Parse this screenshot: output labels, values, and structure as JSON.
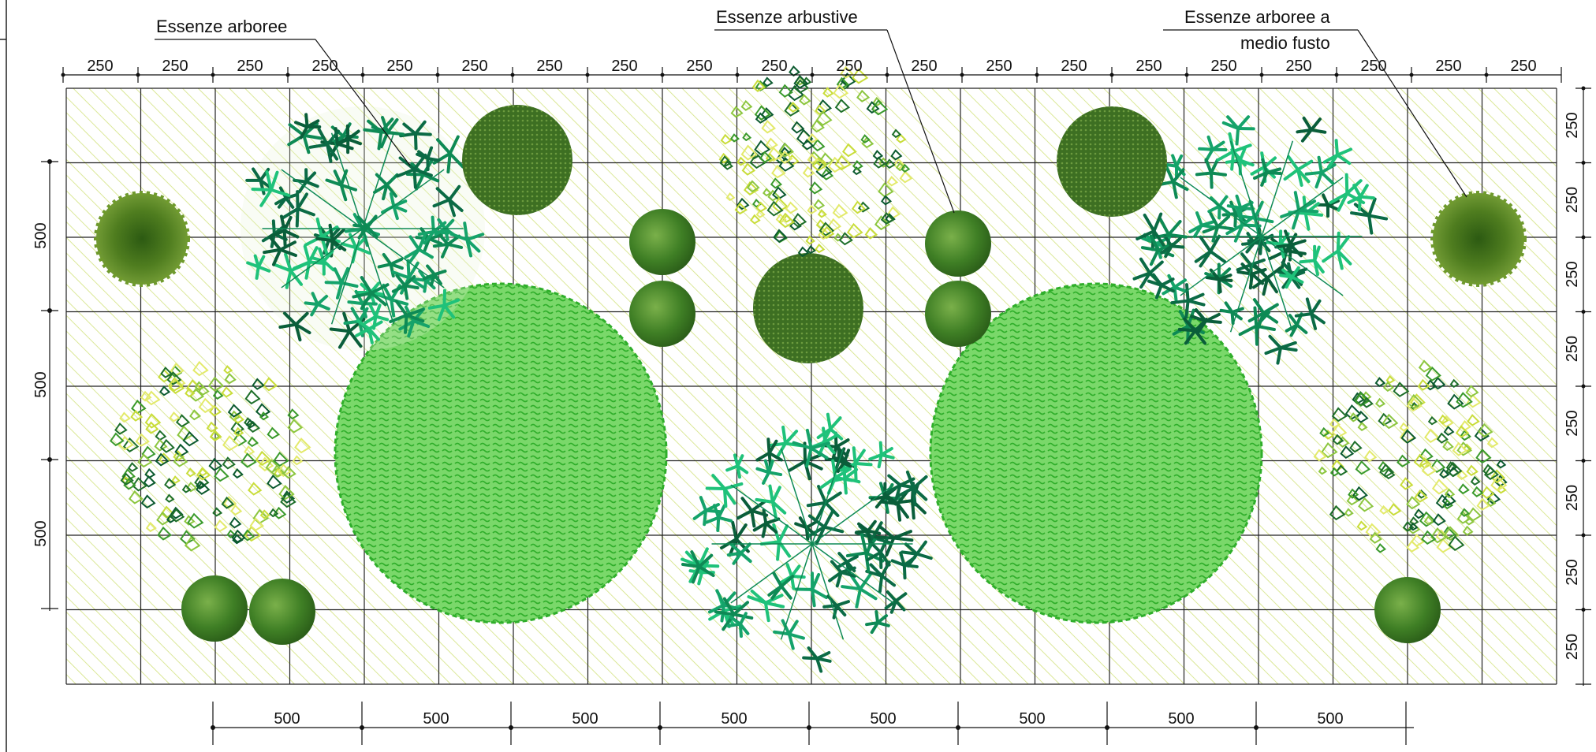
{
  "labels": {
    "arboree": "Essenze arboree",
    "arbustive": "Essenze arbustive",
    "medio_fusto_line1": "Essenze arboree a",
    "medio_fusto_line2": "medio fusto"
  },
  "dimensions": {
    "top": [
      "250",
      "250",
      "250",
      "250",
      "250",
      "250",
      "250",
      "250",
      "250",
      "250",
      "250",
      "250",
      "250",
      "250",
      "250",
      "250",
      "250",
      "250",
      "250",
      "250"
    ],
    "bottom": [
      "500",
      "500",
      "500",
      "500",
      "500",
      "500",
      "500",
      "500"
    ],
    "left": [
      "500",
      "500",
      "500"
    ],
    "right": [
      "250",
      "250",
      "250",
      "250",
      "250",
      "250",
      "250",
      "250"
    ]
  },
  "colors": {
    "ground_hatch": "#cfe07a",
    "dark_green": "#2f6b1e",
    "mid_green": "#3f8f2f",
    "bright_green": "#2fbf2a",
    "teal_green": "#0a7a4a",
    "lime": "#c9dd3a",
    "olive": "#5a8a20"
  }
}
